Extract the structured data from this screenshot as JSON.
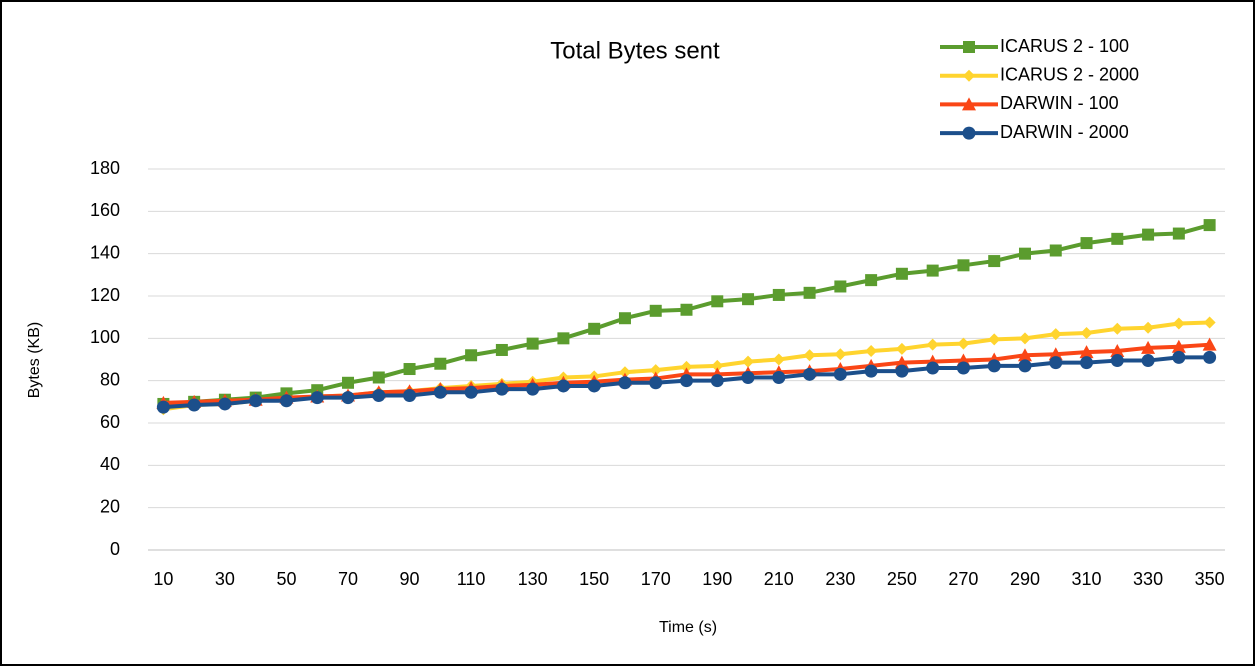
{
  "chart_data": {
    "type": "line",
    "title": "Total Bytes sent",
    "xlabel": "Time (s)",
    "ylabel": "Bytes (KB)",
    "x": [
      10,
      20,
      30,
      40,
      50,
      60,
      70,
      80,
      90,
      100,
      110,
      120,
      130,
      140,
      150,
      160,
      170,
      180,
      190,
      200,
      210,
      220,
      230,
      240,
      250,
      260,
      270,
      280,
      290,
      300,
      310,
      320,
      330,
      340,
      350
    ],
    "xlim": [
      5,
      355
    ],
    "xticks": [
      10,
      30,
      50,
      70,
      90,
      110,
      130,
      150,
      170,
      190,
      210,
      230,
      250,
      270,
      290,
      310,
      330,
      350
    ],
    "ylim": [
      0,
      180
    ],
    "yticks": [
      0,
      20,
      40,
      60,
      80,
      100,
      120,
      140,
      160,
      180
    ],
    "grid": true,
    "legend": "top-right",
    "series": [
      {
        "name": "ICARUS 2 - 100",
        "color": "#5b9c2e",
        "marker": "square",
        "values": [
          69,
          70,
          71,
          72,
          74,
          75.5,
          79,
          81.5,
          85.5,
          88,
          92,
          94.5,
          97.5,
          100,
          104.5,
          109.5,
          113,
          113.5,
          117.5,
          118.5,
          120.5,
          121.5,
          124.5,
          127.5,
          130.5,
          132,
          134.5,
          136.5,
          140,
          141.5,
          145,
          147,
          149,
          149.5,
          153.5
        ]
      },
      {
        "name": "ICARUS 2 - 2000",
        "color": "#ffd42e",
        "marker": "diamond",
        "values": [
          66.5,
          68.5,
          69,
          70.5,
          71.5,
          72.5,
          73,
          74.5,
          75,
          76.5,
          77.5,
          78.5,
          79.5,
          81.5,
          82,
          84,
          85,
          86.5,
          87,
          89,
          90,
          92,
          92.5,
          94,
          95,
          97,
          97.5,
          99.5,
          100,
          102,
          102.5,
          104.5,
          105,
          107,
          107.5
        ]
      },
      {
        "name": "DARWIN - 100",
        "color": "#fa4616",
        "marker": "triangle",
        "values": [
          69.5,
          70,
          70.5,
          71,
          72,
          72.5,
          73,
          74.5,
          75,
          76,
          76.5,
          77.5,
          78,
          79,
          79.5,
          80.5,
          81,
          83,
          83,
          83.5,
          84,
          84.5,
          85.5,
          87,
          88.5,
          89,
          89.5,
          90,
          92,
          92.5,
          93.5,
          94,
          95.5,
          96,
          97
        ]
      },
      {
        "name": "DARWIN - 2000",
        "color": "#1c4f8b",
        "marker": "circle",
        "values": [
          67.5,
          68.5,
          69,
          70.5,
          70.5,
          72,
          72,
          73,
          73,
          74.5,
          74.5,
          76,
          76,
          77.5,
          77.5,
          79,
          79,
          80,
          80,
          81.5,
          81.5,
          83,
          83,
          84.5,
          84.5,
          86,
          86,
          87,
          87,
          88.5,
          88.5,
          89.5,
          89.5,
          91,
          91
        ]
      }
    ]
  }
}
